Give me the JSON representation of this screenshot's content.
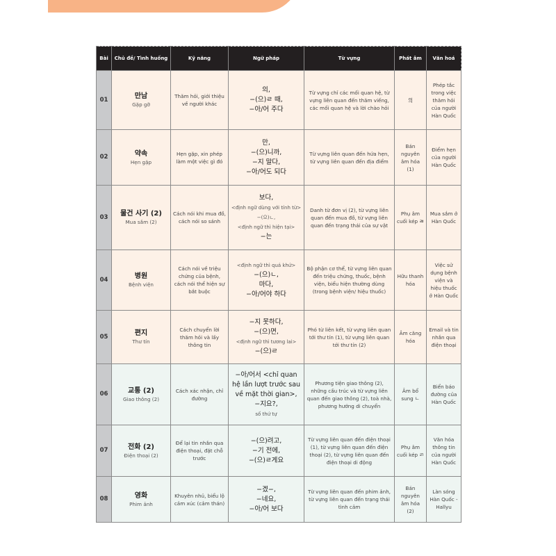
{
  "colors": {
    "banner": "#f8b386",
    "header_bg": "#231f20",
    "warm_row": "#fdf1e7",
    "cool_row": "#eef5f2",
    "number_col": "#c9cacc"
  },
  "headers": [
    "Bài",
    "Chủ đề/ Tình huống",
    "Kỹ năng",
    "Ngữ pháp",
    "Từ vựng",
    "Phát âm",
    "Văn hoá"
  ],
  "rows": [
    {
      "num": "01",
      "topic_kr": "만남",
      "topic_vi": "Gặp gỡ",
      "skill": "Thăm hỏi, giới thiệu về người khác",
      "grammar": [
        "의,",
        "−(으)ㄹ 때,",
        "−아/어 주다"
      ],
      "vocab": "Từ vựng chỉ các mối quan hệ, từ vựng liên quan đến thăm viếng, các mối quan hệ và lời chào hỏi",
      "pron": "의",
      "culture": "Phép tắc trong việc thăm hỏi của người Hàn Quốc"
    },
    {
      "num": "02",
      "topic_kr": "약속",
      "topic_vi": "Hẹn gặp",
      "skill": "Hẹn gặp, xin phép làm một việc gì đó",
      "grammar": [
        "만,",
        "−(으)니까,",
        "−지 말다,",
        "−아/어도 되다"
      ],
      "vocab": "Từ vựng liên quan đến hứa hẹn, từ vựng liên quan đến địa điểm",
      "pron": "Bán nguyên âm hóa (1)",
      "culture": "Điểm hẹn của người Hàn Quốc"
    },
    {
      "num": "03",
      "topic_kr": "물건 사기 (2)",
      "topic_vi": "Mua sắm (2)",
      "skill": "Cách nói khi mua đồ, cách nói so sánh",
      "grammar": [
        "보다,",
        "<định ngữ dùng với tính từ> −(으)ㄴ,",
        "<định ngữ thì hiện tại>",
        "−는"
      ],
      "vocab": "Danh từ đơn vị (2), từ vựng liên quan đến mua đồ, từ vựng liên quan đến trạng thái của sự vật",
      "pron": "Phụ âm cuối kép ㄼ",
      "culture": "Mua sắm ở Hàn Quốc"
    },
    {
      "num": "04",
      "topic_kr": "병원",
      "topic_vi": "Bệnh viện",
      "skill": "Cách nói về triệu chứng của bệnh, cách nói thể hiện sự bắt buộc",
      "grammar": [
        "<định ngữ thì quá khứ>",
        "−(으)ㄴ,",
        "마다,",
        "−아/어야 하다"
      ],
      "vocab": "Bộ phận cơ thể, từ vựng liên quan đến triệu chứng, thuốc, bệnh viện, biểu hiện thường dùng (trong bệnh viện/ hiệu thuốc)",
      "pron": "Hữu thanh hóa",
      "culture": "Việc sử dụng bệnh viện và hiệu thuốc ở Hàn Quốc"
    },
    {
      "num": "05",
      "topic_kr": "편지",
      "topic_vi": "Thư tín",
      "skill": "Cách chuyển lời thăm hỏi và lấy thông tin",
      "grammar": [
        "−지 못하다,",
        "−(으)면,",
        "<định ngữ thì tương lai>",
        "−(으)ㄹ"
      ],
      "vocab": "Phó từ liên kết, từ vựng liên quan tới thư tín (1), từ vựng liên quan tới thư tín (2)",
      "pron": "Âm căng hóa",
      "culture": "Email và tin nhắn qua điện thoại"
    },
    {
      "num": "06",
      "topic_kr": "교통 (2)",
      "topic_vi": "Giao thông (2)",
      "skill": "Cách xác nhận, chỉ đường",
      "grammar": [
        "−아/어서 <chỉ quan hệ lần lượt trước sau về mặt thời gian>,",
        "−지요?,",
        "số thứ tự"
      ],
      "vocab": "Phương tiện giao thông (2), những cấu trúc và từ vựng liên quan đến giao thông (2), toà nhà, phương hướng di chuyển",
      "pron": "Âm bổ sung ㄴ",
      "culture": "Biển báo đường của Hàn Quốc"
    },
    {
      "num": "07",
      "topic_kr": "전화 (2)",
      "topic_vi": "Điện thoại (2)",
      "skill": "Để lại tin nhắn qua điện thoại, đặt chỗ trước",
      "grammar": [
        "−(으)려고,",
        "−기 전에,",
        "−(으)ㄹ게요"
      ],
      "vocab": "Từ vựng liên quan đến điện thoại (1), từ vựng liên quan đến điện thoại (2), từ vựng liên quan đến điện thoại di động",
      "pron": "Phụ âm cuối kép ㄺ",
      "culture": "Văn hóa thông tin của người Hàn Quốc"
    },
    {
      "num": "08",
      "topic_kr": "영화",
      "topic_vi": "Phim ảnh",
      "skill": "Khuyên nhủ, biểu lộ cảm xúc (cảm thán)",
      "grammar": [
        "−겠−,",
        "−네요,",
        "−아/어 보다"
      ],
      "vocab": "Từ vựng liên quan đến phim ảnh, từ vựng liên quan đến trạng thái tình cảm",
      "pron": "Bán nguyên âm hóa (2)",
      "culture": "Làn sóng Hàn Quốc - Hallyu"
    }
  ]
}
